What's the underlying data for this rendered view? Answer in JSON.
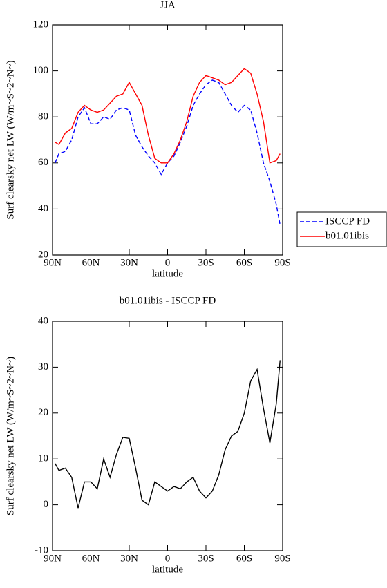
{
  "chart_data": [
    {
      "type": "line",
      "title": "JJA",
      "xlabel": "latitude",
      "ylabel": "Surf clearsky net LW (W/m~S~2~N~)",
      "x": [
        88,
        85,
        80,
        75,
        70,
        65,
        60,
        55,
        50,
        45,
        40,
        35,
        30,
        25,
        20,
        15,
        10,
        5,
        0,
        -5,
        -10,
        -15,
        -20,
        -25,
        -30,
        -35,
        -40,
        -45,
        -50,
        -55,
        -60,
        -65,
        -70,
        -75,
        -80,
        -85,
        -88
      ],
      "series": [
        {
          "name": "ISCCP FD",
          "color": "#0000ff",
          "linestyle": "dashed",
          "values": [
            60,
            64,
            65,
            70,
            80,
            84,
            77,
            77,
            80,
            79,
            83,
            84,
            83,
            72,
            67,
            63,
            60,
            55,
            60,
            63,
            69,
            76,
            85,
            90,
            94,
            96,
            95,
            90,
            85,
            82,
            85,
            83,
            73,
            60,
            52,
            42,
            33
          ]
        },
        {
          "name": "b01.01ibis",
          "color": "#ff0000",
          "linestyle": "solid",
          "values": [
            69,
            68,
            73,
            75,
            82,
            85,
            83,
            82,
            83,
            86,
            89,
            90,
            95,
            90,
            85,
            72,
            62,
            60,
            60,
            64,
            70,
            78,
            89,
            95,
            98,
            97,
            96,
            94,
            95,
            98,
            101,
            99,
            90,
            78,
            60,
            61,
            64
          ]
        }
      ],
      "xlim": [
        90,
        -90
      ],
      "xticks": [
        {
          "value": 90,
          "label": "90N"
        },
        {
          "value": 60,
          "label": "60N"
        },
        {
          "value": 30,
          "label": "30N"
        },
        0,
        {
          "value": -30,
          "label": "30S"
        },
        {
          "value": -60,
          "label": "60S"
        },
        {
          "value": -90,
          "label": "90S"
        }
      ],
      "ylim": [
        20,
        120
      ],
      "yticks": [
        20,
        40,
        60,
        80,
        100,
        120
      ],
      "legend": "right"
    },
    {
      "type": "line",
      "title": "b01.01ibis - ISCCP FD",
      "xlabel": "latitude",
      "ylabel": "Surf clearsky net LW (W/m~S~2~N~)",
      "x": [
        88,
        85,
        80,
        75,
        70,
        65,
        60,
        55,
        50,
        45,
        40,
        35,
        30,
        25,
        20,
        15,
        10,
        5,
        0,
        -5,
        -10,
        -15,
        -20,
        -25,
        -30,
        -35,
        -40,
        -45,
        -50,
        -55,
        -60,
        -65,
        -70,
        -75,
        -80,
        -85,
        -88
      ],
      "series": [
        {
          "color": "#000000",
          "linestyle": "solid",
          "values": [
            9,
            7.5,
            8,
            6,
            -0.7,
            5,
            5,
            3.5,
            10,
            6,
            11,
            14.7,
            14.5,
            8,
            1,
            0,
            5,
            4,
            3,
            4,
            3.5,
            5,
            6,
            3,
            1.5,
            3,
            6.5,
            12,
            15,
            16,
            20,
            27,
            29.5,
            21,
            13.5,
            22,
            31.5
          ]
        }
      ],
      "xlim": [
        90,
        -90
      ],
      "xticks": [
        {
          "value": 90,
          "label": "90N"
        },
        {
          "value": 60,
          "label": "60N"
        },
        {
          "value": 30,
          "label": "30N"
        },
        0,
        {
          "value": -30,
          "label": "30S"
        },
        {
          "value": -60,
          "label": "60S"
        },
        {
          "value": -90,
          "label": "90S"
        }
      ],
      "ylim": [
        -10,
        40
      ],
      "yticks": [
        -10,
        0,
        10,
        20,
        30,
        40
      ]
    }
  ]
}
